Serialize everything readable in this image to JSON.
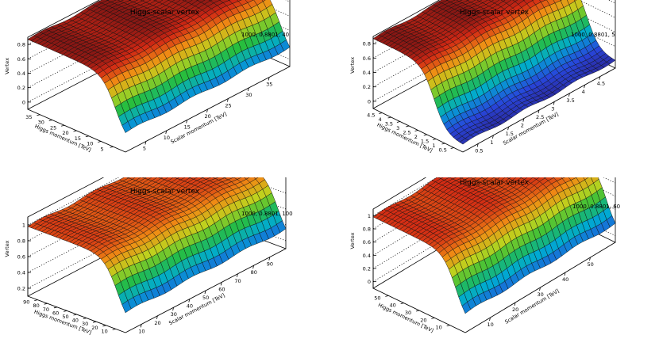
{
  "figure": {
    "description_title": "Higgs-scalar vertex"
  },
  "chart_data": [
    {
      "type": "surface",
      "title": "Higgs-scalar vertex",
      "label": "1000, 0.8801, 40",
      "zlabel": "Vertex",
      "xlabel": "Scalar momentum [TeV]",
      "ylabel": "Higgs momentum [TeV]",
      "xlim": [
        0,
        40
      ],
      "ylim": [
        0,
        40
      ],
      "zlim": [
        -0.1,
        0.9
      ],
      "xticks": [
        "5",
        "10",
        "15",
        "20",
        "25",
        "30",
        "35"
      ],
      "yticks": [
        "5",
        "10",
        "15",
        "20",
        "25",
        "30",
        "35"
      ],
      "zticks": [
        "0",
        "0.2",
        "0.4",
        "0.6",
        "0.8"
      ],
      "transition_y": 4.0,
      "low_value": 0.0,
      "plateau_value": 0.87
    },
    {
      "type": "surface",
      "title": "Higgs-scalar vertex",
      "label": "1000, 0.8801, 5",
      "zlabel": "Vertex",
      "xlabel": "Scalar momentum [TeV]",
      "ylabel": "Higgs momentum [TeV]",
      "xlim": [
        0,
        5
      ],
      "ylim": [
        0,
        5
      ],
      "zlim": [
        -0.1,
        0.9
      ],
      "xticks": [
        "0.5",
        "1",
        "1.5",
        "2",
        "2.5",
        "3",
        "3.5",
        "4",
        "4.5"
      ],
      "yticks": [
        "0.5",
        "1",
        "1.5",
        "2",
        "2.5",
        "3",
        "3.5",
        "4",
        "4.5"
      ],
      "zticks": [
        "0",
        "0.2",
        "0.4",
        "0.6",
        "0.8"
      ],
      "transition_y": 1.6,
      "low_value": 0.0,
      "plateau_value": 0.87
    },
    {
      "type": "surface",
      "title": "Higgs-scalar vertex",
      "label": "1000, 0.8801, 100",
      "zlabel": "Vertex",
      "xlabel": "Scalar momentum [TeV]",
      "ylabel": "Higgs momentum [TeV]",
      "xlim": [
        0,
        100
      ],
      "ylim": [
        0,
        100
      ],
      "zlim": [
        0.1,
        1.1
      ],
      "xticks": [
        "10",
        "20",
        "30",
        "40",
        "50",
        "60",
        "70",
        "80",
        "90"
      ],
      "yticks": [
        "10",
        "20",
        "30",
        "40",
        "50",
        "60",
        "70",
        "80",
        "90"
      ],
      "zticks": [
        "0.2",
        "0.4",
        "0.6",
        "0.8",
        "1"
      ],
      "transition_y": 8.0,
      "low_value": 0.15,
      "plateau_value": 0.98
    },
    {
      "type": "surface",
      "title": "Higgs-scalar vertex",
      "label": "1000, 0.8801, 60",
      "zlabel": "Vertex",
      "xlabel": "Scalar momentum [TeV]",
      "ylabel": "Higgs momentum [TeV]",
      "xlim": [
        0,
        60
      ],
      "ylim": [
        0,
        60
      ],
      "zlim": [
        -0.1,
        1.1
      ],
      "xticks": [
        "10",
        "20",
        "30",
        "40",
        "50"
      ],
      "yticks": [
        "10",
        "20",
        "30",
        "40",
        "50"
      ],
      "zticks": [
        "0",
        "0.2",
        "0.4",
        "0.6",
        "0.8",
        "1"
      ],
      "transition_y": 6.0,
      "low_value": 0.0,
      "plateau_value": 0.98
    }
  ]
}
